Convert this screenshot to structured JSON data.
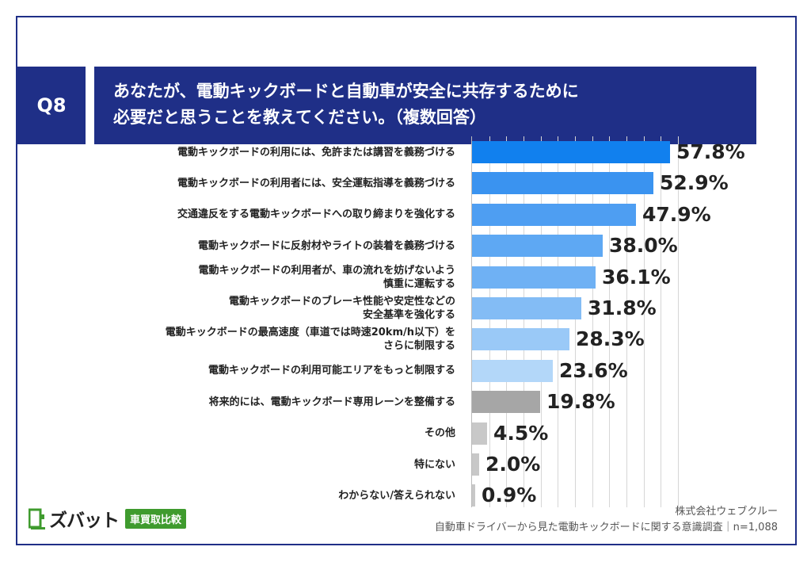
{
  "question": {
    "number": "Q8",
    "line1": "あなたが、電動キックボードと自動車が安全に共存するために",
    "line2": "必要だと思うことを教えてください。（複数回答）"
  },
  "chart_data": {
    "type": "bar",
    "orientation": "horizontal",
    "unit": "%",
    "xlim": [
      0,
      60
    ],
    "grid": true,
    "categories": [
      "電動キックボードの利用には、免許または講習を義務づける",
      "電動キックボードの利用者には、安全運転指導を義務づける",
      "交通違反をする電動キックボードへの取り締まりを強化する",
      "電動キックボードに反射材やライトの装着を義務づける",
      "電動キックボードの利用者が、車の流れを妨げないよう 慎重に運転する",
      "電動キックボードのブレーキ性能や安定性などの 安全基準を強化する",
      "電動キックボードの最高速度（車道では時速20km/h以下）を さらに制限する",
      "電動キックボードの利用可能エリアをもっと制限する",
      "将来的には、電動キックボード専用レーンを整備する",
      "その他",
      "特にない",
      "わからない/答えられない"
    ],
    "label_lines": [
      [
        "電動キックボードの利用には、免許または講習を義務づける"
      ],
      [
        "電動キックボードの利用者には、安全運転指導を義務づける"
      ],
      [
        "交通違反をする電動キックボードへの取り締まりを強化する"
      ],
      [
        "電動キックボードに反射材やライトの装着を義務づける"
      ],
      [
        "電動キックボードの利用者が、車の流れを妨げないよう",
        "慎重に運転する"
      ],
      [
        "電動キックボードのブレーキ性能や安定性などの",
        "安全基準を強化する"
      ],
      [
        "電動キックボードの最高速度（車道では時速20km/h以下）を",
        "さらに制限する"
      ],
      [
        "電動キックボードの利用可能エリアをもっと制限する"
      ],
      [
        "将来的には、電動キックボード専用レーンを整備する"
      ],
      [
        "その他"
      ],
      [
        "特にない"
      ],
      [
        "わからない/答えられない"
      ]
    ],
    "values": [
      57.8,
      52.9,
      47.9,
      38.0,
      36.1,
      31.8,
      28.3,
      23.6,
      19.8,
      4.5,
      2.0,
      0.9
    ],
    "value_labels": [
      "57.8%",
      "52.9%",
      "47.9%",
      "38.0%",
      "36.1%",
      "31.8%",
      "28.3%",
      "23.6%",
      "19.8%",
      "4.5%",
      "2.0%",
      "0.9%"
    ],
    "colors": [
      "#1180ee",
      "#3a93f0",
      "#4e9ef2",
      "#5ea8f3",
      "#6fb1f4",
      "#83bcf5",
      "#9ac9f7",
      "#b3d7f9",
      "#a6a6a6",
      "#c8c8c8",
      "#c8c8c8",
      "#c8c8c8"
    ]
  },
  "footer": {
    "company": "株式会社ウェブクルー",
    "survey": "自動車ドライバーから見た電動キックボードに関する意識調査｜n=1,088"
  },
  "logo": {
    "text": "ズバット",
    "badge": "車買取比較",
    "brand_color": "#3f9b2e"
  }
}
